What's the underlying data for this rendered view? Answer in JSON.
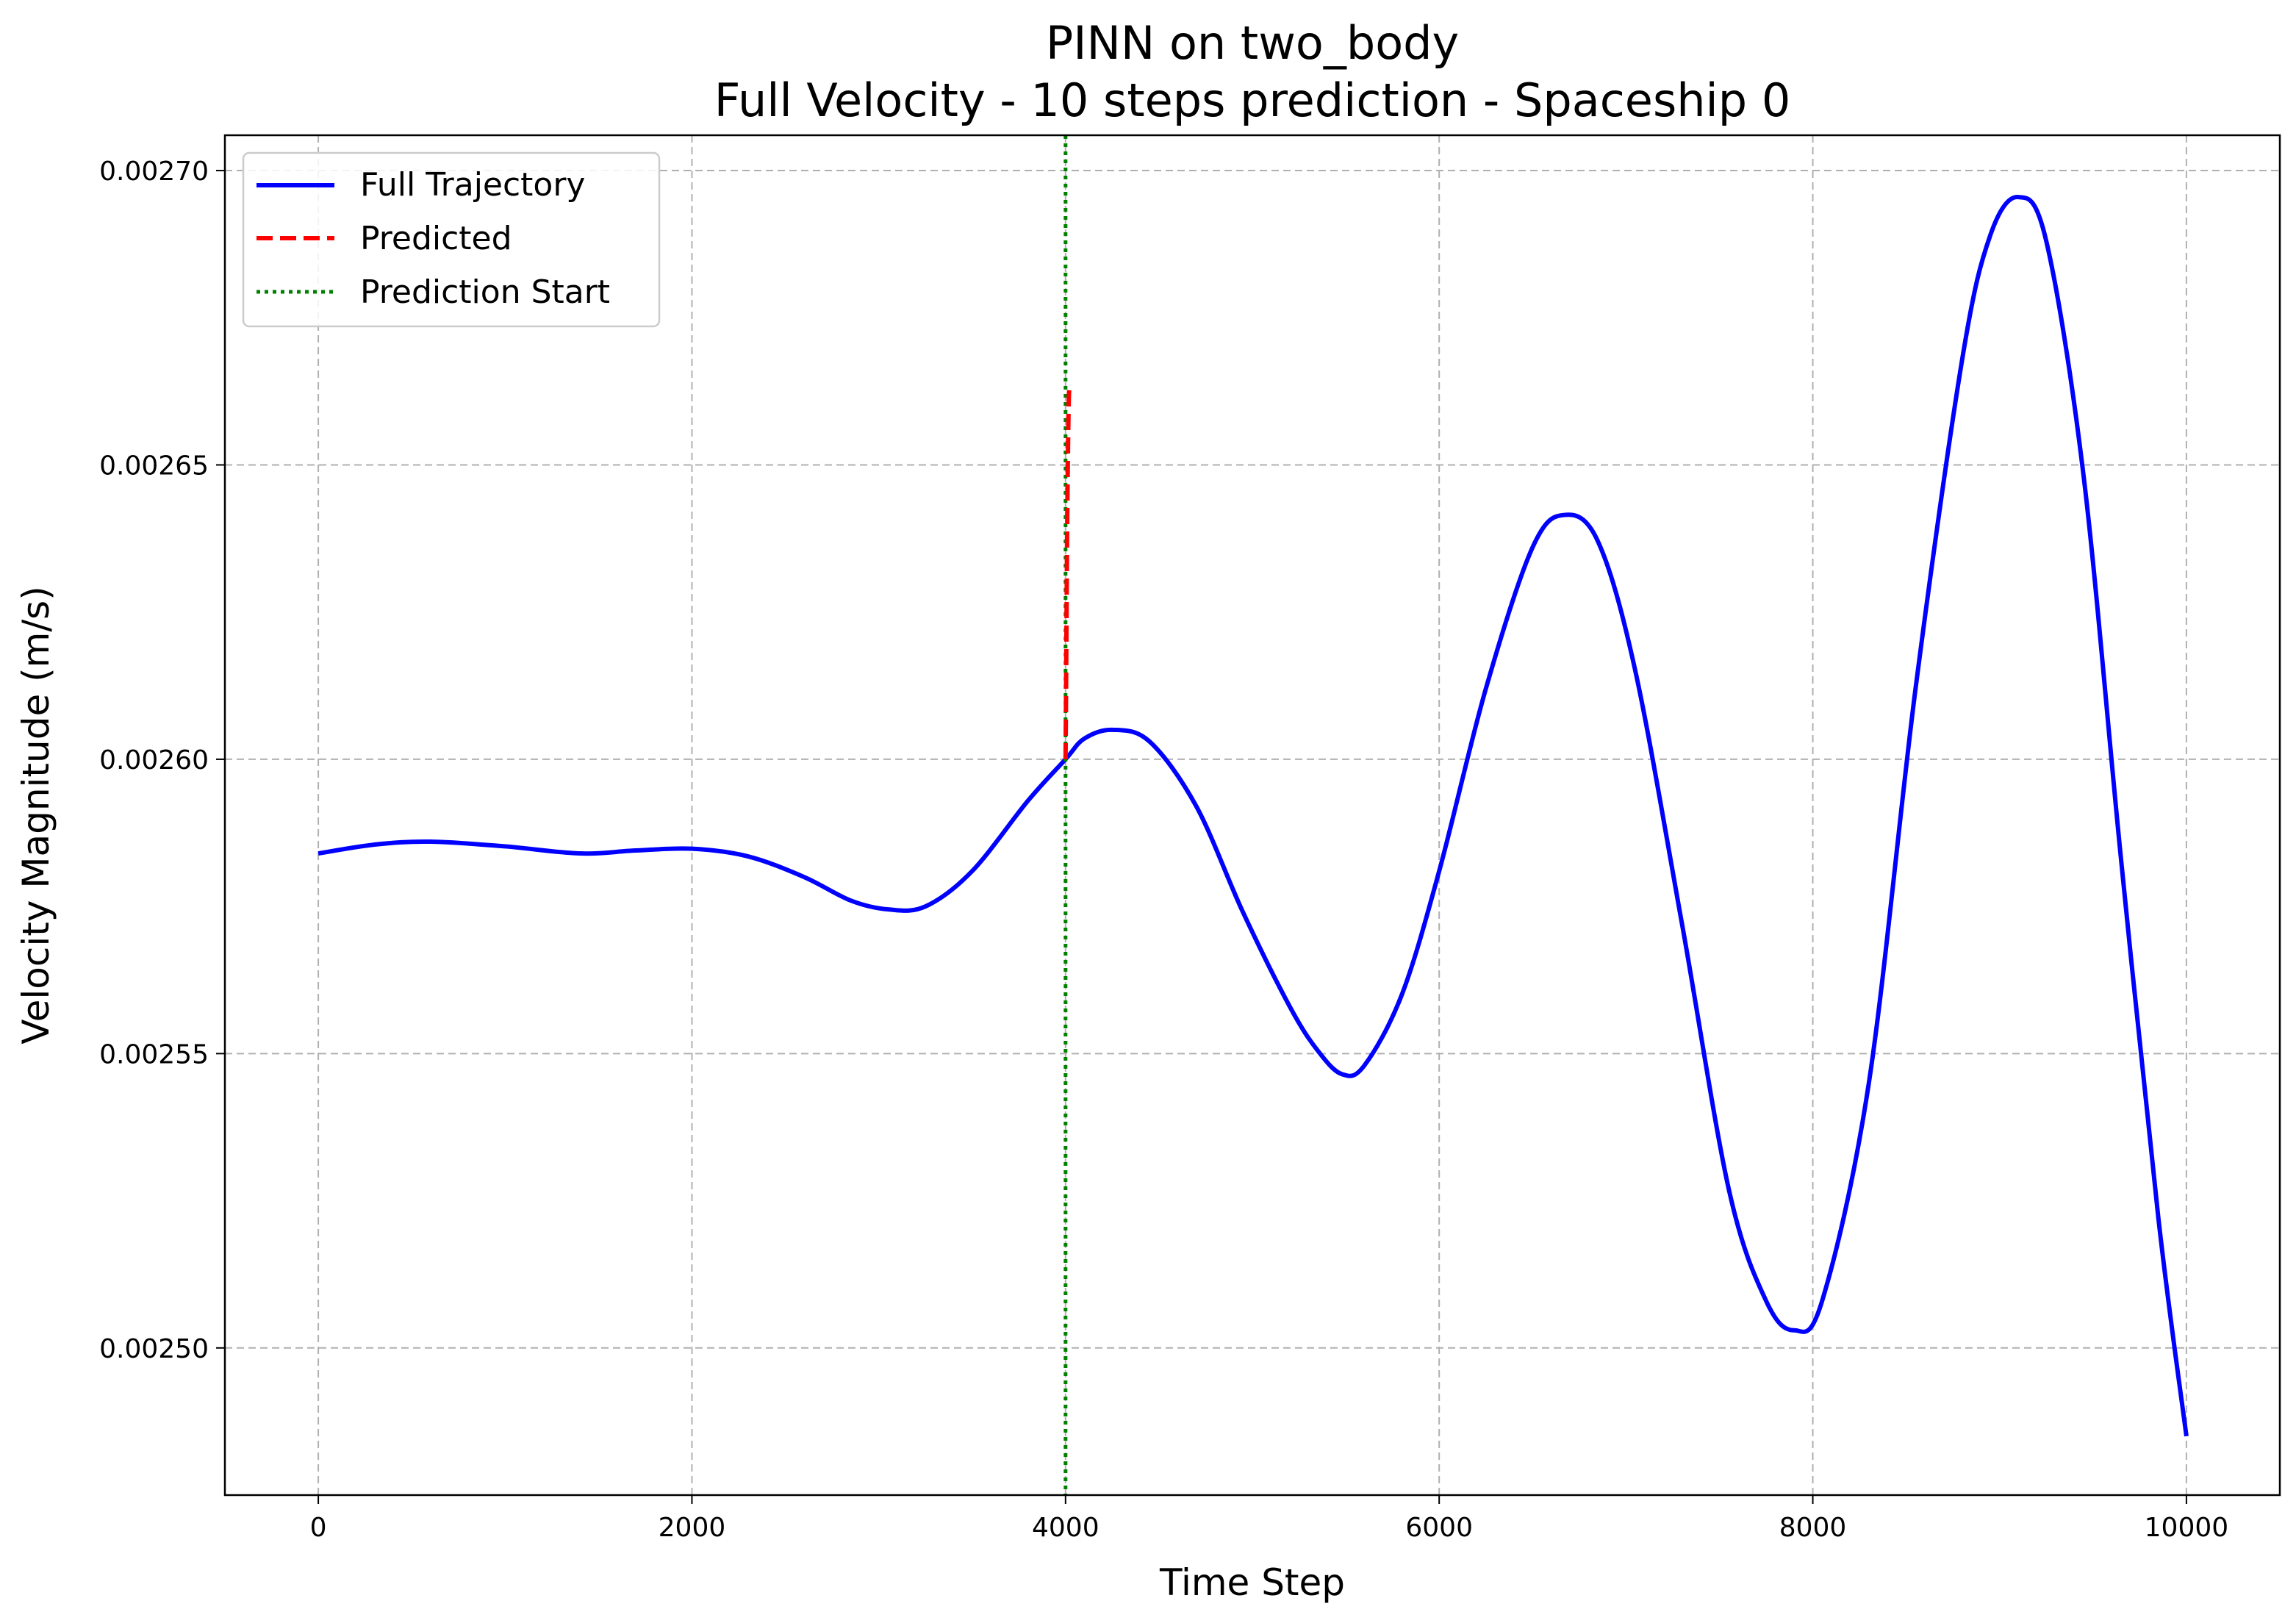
{
  "chart_data": {
    "type": "line",
    "title_line1": "PINN on two_body",
    "title_line2": "Full Velocity - 10 steps prediction - Spaceship 0",
    "xlabel": "Time Step",
    "ylabel": "Velocity Magnitude (m/s)",
    "xlim": [
      -500,
      10500
    ],
    "ylim": [
      0.002475,
      0.002706
    ],
    "x_ticks": [
      0,
      2000,
      4000,
      6000,
      8000,
      10000
    ],
    "x_tick_labels": [
      "0",
      "2000",
      "4000",
      "6000",
      "8000",
      "10000"
    ],
    "y_ticks": [
      0.0025,
      0.00255,
      0.0026,
      0.00265,
      0.0027
    ],
    "y_tick_labels": [
      "0.00250",
      "0.00255",
      "0.00260",
      "0.00265",
      "0.00270"
    ],
    "grid": true,
    "legend_position": "upper-left",
    "series": [
      {
        "name": "Full Trajectory",
        "color": "#0000ff",
        "style": "solid",
        "points": [
          [
            0,
            0.002584
          ],
          [
            300,
            0.0025855
          ],
          [
            600,
            0.002586
          ],
          [
            1000,
            0.0025852
          ],
          [
            1400,
            0.002584
          ],
          [
            1700,
            0.0025845
          ],
          [
            2000,
            0.0025848
          ],
          [
            2300,
            0.0025835
          ],
          [
            2600,
            0.00258
          ],
          [
            2850,
            0.002576
          ],
          [
            3050,
            0.0025745
          ],
          [
            3250,
            0.002575
          ],
          [
            3500,
            0.002581
          ],
          [
            3800,
            0.002593
          ],
          [
            4000,
            0.0026
          ],
          [
            4100,
            0.0026035
          ],
          [
            4250,
            0.002605
          ],
          [
            4450,
            0.002603
          ],
          [
            4700,
            0.002592
          ],
          [
            4950,
            0.002574
          ],
          [
            5200,
            0.002558
          ],
          [
            5350,
            0.0025505
          ],
          [
            5480,
            0.0025465
          ],
          [
            5600,
            0.002548
          ],
          [
            5800,
            0.00256
          ],
          [
            6000,
            0.002581
          ],
          [
            6250,
            0.002612
          ],
          [
            6500,
            0.002636
          ],
          [
            6670,
            0.0026415
          ],
          [
            6850,
            0.002637
          ],
          [
            7050,
            0.002615
          ],
          [
            7300,
            0.002572
          ],
          [
            7550,
            0.002527
          ],
          [
            7750,
            0.002508
          ],
          [
            7900,
            0.002503
          ],
          [
            8050,
            0.002508
          ],
          [
            8300,
            0.002545
          ],
          [
            8550,
            0.002612
          ],
          [
            8800,
            0.002668
          ],
          [
            8950,
            0.002689
          ],
          [
            9100,
            0.0026955
          ],
          [
            9250,
            0.002688
          ],
          [
            9450,
            0.002648
          ],
          [
            9650,
            0.002583
          ],
          [
            9850,
            0.002522
          ],
          [
            10000,
            0.002485
          ]
        ]
      },
      {
        "name": "Predicted",
        "color": "#ff0000",
        "style": "dashed",
        "points": [
          [
            4000,
            0.0026
          ],
          [
            4002,
            0.002608
          ],
          [
            4004,
            0.002618
          ],
          [
            4006,
            0.002628
          ],
          [
            4008,
            0.002637
          ],
          [
            4010,
            0.002644
          ],
          [
            4012,
            0.00265
          ],
          [
            4014,
            0.002655
          ],
          [
            4016,
            0.002659
          ],
          [
            4018,
            0.002662
          ],
          [
            4020,
            0.002663
          ]
        ]
      }
    ],
    "vertical_lines": [
      {
        "name": "Prediction Start",
        "x": 4000,
        "color": "#008000",
        "style": "dotted"
      }
    ]
  }
}
